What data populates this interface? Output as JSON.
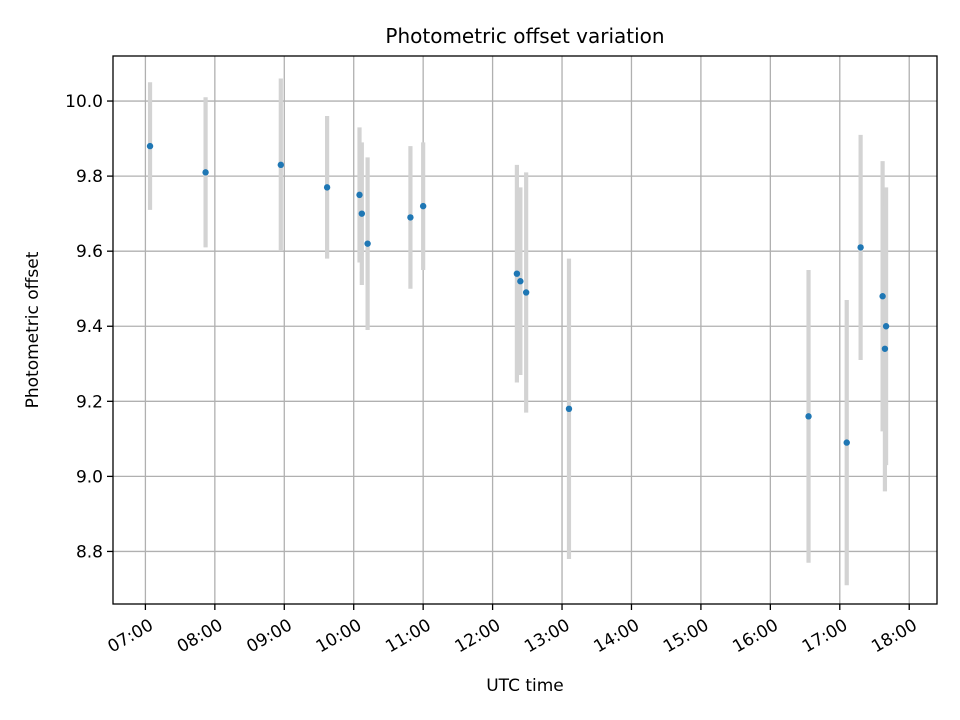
{
  "chart_data": {
    "type": "scatter",
    "title": "Photometric offset variation",
    "xlabel": "UTC time",
    "ylabel": "Photometric offset",
    "grid": true,
    "xlim": [
      "06:32",
      "18:24"
    ],
    "ylim": [
      8.66,
      10.12
    ],
    "xticks": [
      "07:00",
      "08:00",
      "09:00",
      "10:00",
      "11:00",
      "12:00",
      "13:00",
      "14:00",
      "15:00",
      "16:00",
      "17:00",
      "18:00"
    ],
    "yticks": [
      "8.8",
      "9.0",
      "9.2",
      "9.4",
      "9.6",
      "9.8",
      "10.0"
    ],
    "marker_color": "#1f77b4",
    "errorbar_color": "#d3d3d3",
    "points": [
      {
        "x": "07:04",
        "y": 9.88,
        "err": 0.17
      },
      {
        "x": "07:52",
        "y": 9.81,
        "err": 0.2
      },
      {
        "x": "08:57",
        "y": 9.83,
        "err": 0.23
      },
      {
        "x": "09:37",
        "y": 9.77,
        "err": 0.19
      },
      {
        "x": "10:05",
        "y": 9.75,
        "err": 0.18
      },
      {
        "x": "10:07",
        "y": 9.7,
        "err": 0.19
      },
      {
        "x": "10:12",
        "y": 9.62,
        "err": 0.23
      },
      {
        "x": "10:49",
        "y": 9.69,
        "err": 0.19
      },
      {
        "x": "11:00",
        "y": 9.72,
        "err": 0.17
      },
      {
        "x": "12:21",
        "y": 9.54,
        "err": 0.29
      },
      {
        "x": "12:24",
        "y": 9.52,
        "err": 0.25
      },
      {
        "x": "12:29",
        "y": 9.49,
        "err": 0.32
      },
      {
        "x": "13:06",
        "y": 9.18,
        "err": 0.4
      },
      {
        "x": "16:33",
        "y": 9.16,
        "err": 0.39
      },
      {
        "x": "17:06",
        "y": 9.09,
        "err": 0.38
      },
      {
        "x": "17:18",
        "y": 9.61,
        "err": 0.3
      },
      {
        "x": "17:37",
        "y": 9.48,
        "err": 0.36
      },
      {
        "x": "17:40",
        "y": 9.4,
        "err": 0.37
      },
      {
        "x": "17:39",
        "y": 9.34,
        "err": 0.38
      }
    ]
  }
}
